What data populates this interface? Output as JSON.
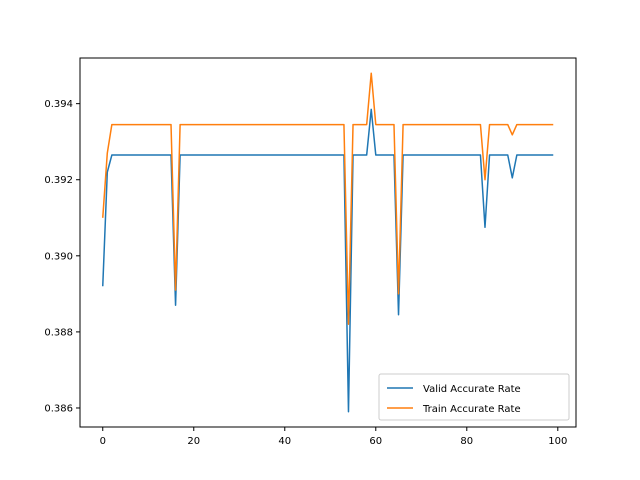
{
  "chart_data": {
    "type": "line",
    "title": "",
    "xlabel": "",
    "ylabel": "",
    "xlim": [
      -5,
      104
    ],
    "ylim": [
      0.3855,
      0.3952
    ],
    "x_ticks": [
      0,
      20,
      40,
      60,
      80,
      100
    ],
    "y_ticks": [
      0.386,
      0.388,
      0.39,
      0.392,
      0.394
    ],
    "y_tick_labels": [
      "0.386",
      "0.388",
      "0.390",
      "0.392",
      "0.394"
    ],
    "grid": false,
    "legend_position": "lower-right",
    "series": [
      {
        "name": "Valid Accurate Rate",
        "color": "#1f77b4",
        "x": [
          0,
          1,
          2,
          3,
          4,
          5,
          6,
          7,
          8,
          9,
          10,
          11,
          12,
          13,
          14,
          15,
          16,
          17,
          18,
          19,
          20,
          21,
          22,
          23,
          24,
          25,
          26,
          27,
          28,
          29,
          30,
          31,
          32,
          33,
          34,
          35,
          36,
          37,
          38,
          39,
          40,
          41,
          42,
          43,
          44,
          45,
          46,
          47,
          48,
          49,
          50,
          51,
          52,
          53,
          54,
          55,
          56,
          57,
          58,
          59,
          60,
          61,
          62,
          63,
          64,
          65,
          66,
          67,
          68,
          69,
          70,
          71,
          72,
          73,
          74,
          75,
          76,
          77,
          78,
          79,
          80,
          81,
          82,
          83,
          84,
          85,
          86,
          87,
          88,
          89,
          90,
          91,
          92,
          93,
          94,
          95,
          96,
          97,
          98,
          99
        ],
        "values": [
          0.3892,
          0.3922,
          0.39265,
          0.39265,
          0.39265,
          0.39265,
          0.39265,
          0.39265,
          0.39265,
          0.39265,
          0.39265,
          0.39265,
          0.39265,
          0.39265,
          0.39265,
          0.39265,
          0.3887,
          0.39265,
          0.39265,
          0.39265,
          0.39265,
          0.39265,
          0.39265,
          0.39265,
          0.39265,
          0.39265,
          0.39265,
          0.39265,
          0.39265,
          0.39265,
          0.39265,
          0.39265,
          0.39265,
          0.39265,
          0.39265,
          0.39265,
          0.39265,
          0.39265,
          0.39265,
          0.39265,
          0.39265,
          0.39265,
          0.39265,
          0.39265,
          0.39265,
          0.39265,
          0.39265,
          0.39265,
          0.39265,
          0.39265,
          0.39265,
          0.39265,
          0.39265,
          0.39265,
          0.3859,
          0.39265,
          0.39265,
          0.39265,
          0.39265,
          0.39385,
          0.39265,
          0.39265,
          0.39265,
          0.39265,
          0.39265,
          0.38845,
          0.39265,
          0.39265,
          0.39265,
          0.39265,
          0.39265,
          0.39265,
          0.39265,
          0.39265,
          0.39265,
          0.39265,
          0.39265,
          0.39265,
          0.39265,
          0.39265,
          0.39265,
          0.39265,
          0.39265,
          0.39265,
          0.39075,
          0.39265,
          0.39265,
          0.39265,
          0.39265,
          0.39265,
          0.39205,
          0.39265,
          0.39265,
          0.39265,
          0.39265,
          0.39265,
          0.39265,
          0.39265,
          0.39265,
          0.39265
        ]
      },
      {
        "name": "Train Accurate Rate",
        "color": "#ff7f0e",
        "x": [
          0,
          1,
          2,
          3,
          4,
          5,
          6,
          7,
          8,
          9,
          10,
          11,
          12,
          13,
          14,
          15,
          16,
          17,
          18,
          19,
          20,
          21,
          22,
          23,
          24,
          25,
          26,
          27,
          28,
          29,
          30,
          31,
          32,
          33,
          34,
          35,
          36,
          37,
          38,
          39,
          40,
          41,
          42,
          43,
          44,
          45,
          46,
          47,
          48,
          49,
          50,
          51,
          52,
          53,
          54,
          55,
          56,
          57,
          58,
          59,
          60,
          61,
          62,
          63,
          64,
          65,
          66,
          67,
          68,
          69,
          70,
          71,
          72,
          73,
          74,
          75,
          76,
          77,
          78,
          79,
          80,
          81,
          82,
          83,
          84,
          85,
          86,
          87,
          88,
          89,
          90,
          91,
          92,
          93,
          94,
          95,
          96,
          97,
          98,
          99
        ],
        "values": [
          0.391,
          0.3927,
          0.39345,
          0.39345,
          0.39345,
          0.39345,
          0.39345,
          0.39345,
          0.39345,
          0.39345,
          0.39345,
          0.39345,
          0.39345,
          0.39345,
          0.39345,
          0.39345,
          0.3891,
          0.39345,
          0.39345,
          0.39345,
          0.39345,
          0.39345,
          0.39345,
          0.39345,
          0.39345,
          0.39345,
          0.39345,
          0.39345,
          0.39345,
          0.39345,
          0.39345,
          0.39345,
          0.39345,
          0.39345,
          0.39345,
          0.39345,
          0.39345,
          0.39345,
          0.39345,
          0.39345,
          0.39345,
          0.39345,
          0.39345,
          0.39345,
          0.39345,
          0.39345,
          0.39345,
          0.39345,
          0.39345,
          0.39345,
          0.39345,
          0.39345,
          0.39345,
          0.39345,
          0.3882,
          0.39345,
          0.39345,
          0.39345,
          0.39345,
          0.3948,
          0.39345,
          0.39345,
          0.39345,
          0.39345,
          0.39345,
          0.389,
          0.39345,
          0.39345,
          0.39345,
          0.39345,
          0.39345,
          0.39345,
          0.39345,
          0.39345,
          0.39345,
          0.39345,
          0.39345,
          0.39345,
          0.39345,
          0.39345,
          0.39345,
          0.39345,
          0.39345,
          0.39345,
          0.392,
          0.39345,
          0.39345,
          0.39345,
          0.39345,
          0.39345,
          0.39318,
          0.39345,
          0.39345,
          0.39345,
          0.39345,
          0.39345,
          0.39345,
          0.39345,
          0.39345,
          0.39345
        ]
      }
    ]
  }
}
